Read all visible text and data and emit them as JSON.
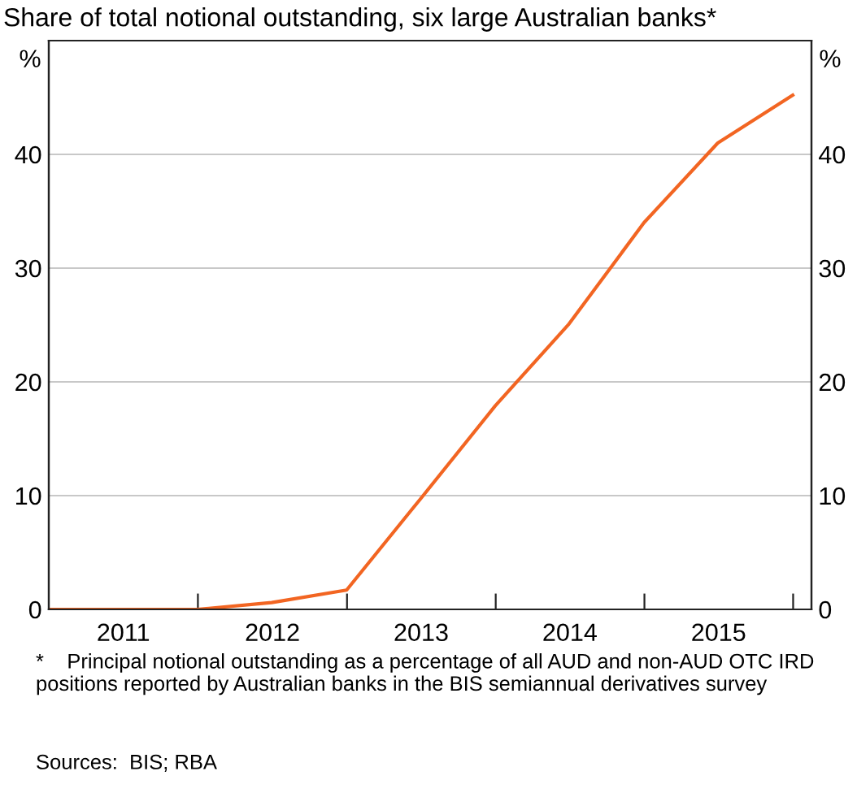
{
  "chart_data": {
    "type": "line",
    "title": "Share of total notional outstanding, six large Australian banks*",
    "ylabel": "%",
    "y2label": "%",
    "x": [
      "2010-12-31",
      "2011-12-31",
      "2012-06-30",
      "2012-12-31",
      "2013-06-30",
      "2013-12-31",
      "2014-06-30",
      "2014-12-31",
      "2015-06-30",
      "2015-12-31"
    ],
    "series": [
      {
        "color": "#f26522",
        "values": [
          0,
          0,
          0.6,
          1.7,
          9.7,
          17.9,
          25.1,
          34.0,
          41.0,
          45.2
        ]
      }
    ],
    "xlim": [
      "2010-12-31",
      "2016-02-15"
    ],
    "xticks": [
      {
        "value": "2012-01-01",
        "label": null
      },
      {
        "value": "2013-01-01",
        "label": null
      },
      {
        "value": "2014-01-01",
        "label": null
      },
      {
        "value": "2015-01-01",
        "label": null
      },
      {
        "value": "2016-01-01",
        "label": null
      },
      {
        "value": "2011-07-02",
        "label": "2011"
      },
      {
        "value": "2012-07-02",
        "label": "2012"
      },
      {
        "value": "2013-07-02",
        "label": "2013"
      },
      {
        "value": "2014-07-02",
        "label": "2014"
      },
      {
        "value": "2015-07-02",
        "label": "2015"
      }
    ],
    "ylim": [
      0,
      50
    ],
    "yticks": [
      0,
      10,
      20,
      30,
      40
    ],
    "y2lim": [
      0,
      50
    ],
    "y2ticks": [
      0,
      10,
      20,
      30,
      40
    ],
    "grid": "y",
    "legend": false,
    "marker": "none",
    "line_style": "solid",
    "annotations": [
      "*    Principal notional outstanding as a percentage of all AUD and non-AUD OTC IRD positions reported by Australian banks in the BIS semiannual derivatives survey",
      "Sources:  BIS; RBA"
    ]
  }
}
